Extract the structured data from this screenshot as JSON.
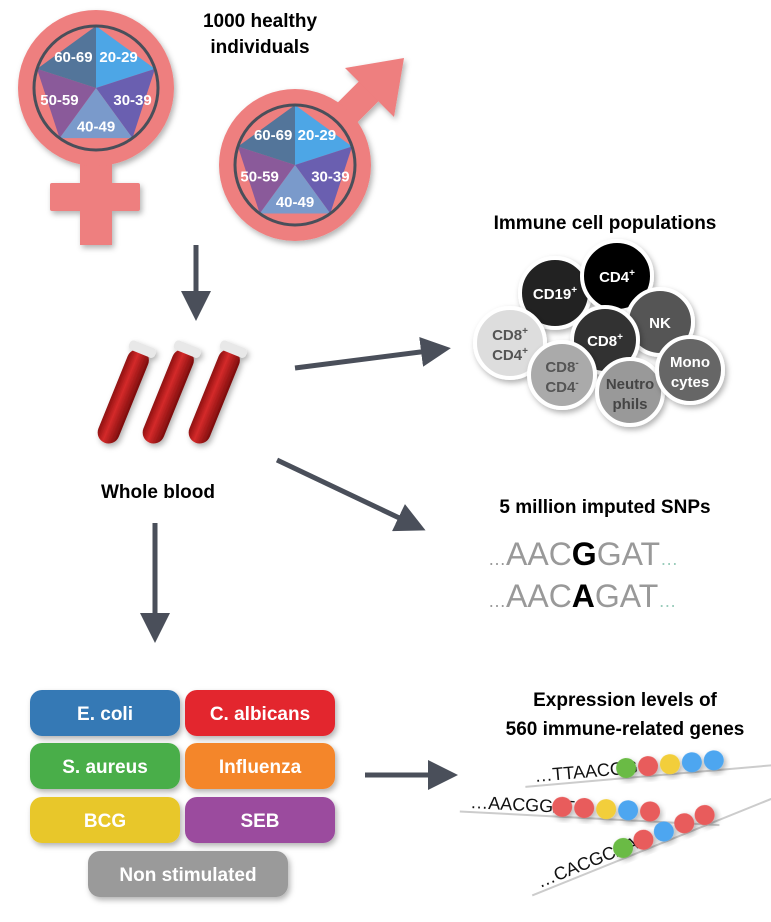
{
  "title": {
    "line1": "1000 healthy",
    "line2": "individuals"
  },
  "age_groups": [
    "20-29",
    "30-39",
    "40-49",
    "50-59",
    "60-69"
  ],
  "age_colors": [
    "#4EA6E6",
    "#6A5FB0",
    "#7A9ACB",
    "#8A5A9A",
    "#52759A"
  ],
  "symbol_color": "#EE7F7F",
  "whole_blood": "Whole blood",
  "immune": {
    "title": "Immune cell populations",
    "cells": [
      {
        "line1": "CD19",
        "sup1": "+",
        "color": "#222222",
        "text": "#ffffff"
      },
      {
        "line1": "CD4",
        "sup1": "+",
        "color": "#000000",
        "text": "#ffffff"
      },
      {
        "line1": "NK",
        "color": "#555555",
        "text": "#ffffff"
      },
      {
        "line1": "CD8",
        "sup1": "+",
        "color": "#333333",
        "text": "#ffffff"
      },
      {
        "line1": "CD8",
        "sup1": "+",
        "line2": "CD4",
        "sup2": "+",
        "color": "#dddddd",
        "text": "#555555"
      },
      {
        "line1": "CD8",
        "sup1": "-",
        "line2": "CD4",
        "sup2": "-",
        "color": "#aaaaaa",
        "text": "#555555"
      },
      {
        "line1": "Neutro",
        "line2": "phils",
        "color": "#999999",
        "text": "#444444"
      },
      {
        "line1": "Mono",
        "line2": "cytes",
        "color": "#666666",
        "text": "#ffffff"
      }
    ]
  },
  "snps": {
    "title": "5 million imputed SNPs",
    "seq1": {
      "pre": "…",
      "left": "AAC",
      "allele": "G",
      "right": "GAT",
      "post": "…"
    },
    "seq2": {
      "pre": "…",
      "left": "AAC",
      "allele": "A",
      "right": "GAT",
      "post": "…"
    }
  },
  "stimuli": [
    {
      "label": "E. coli",
      "color": "#3579B5"
    },
    {
      "label": "C. albicans",
      "color": "#E3262D"
    },
    {
      "label": "S. aureus",
      "color": "#4AAE4A"
    },
    {
      "label": "Influenza",
      "color": "#F4862A"
    },
    {
      "label": "BCG",
      "color": "#E8C72A"
    },
    {
      "label": "SEB",
      "color": "#9B4C9E"
    },
    {
      "label": "Non stimulated",
      "color": "#9A9A9A"
    }
  ],
  "expression": {
    "line1": "Expression levels of",
    "line2": "560 immune-related genes",
    "sequences": [
      {
        "text": "…TTAACGG",
        "dots": [
          "#6BBB45",
          "#E85C5C",
          "#F2CE3A",
          "#4EA6F0",
          "#4EA6F0"
        ]
      },
      {
        "text": "…AACGGAT",
        "dots": [
          "#E85C5C",
          "#E85C5C",
          "#F2CE3A",
          "#4EA6F0",
          "#E85C5C"
        ]
      },
      {
        "text": "…CACGCAA",
        "dots": [
          "#6BBB45",
          "#E85C5C",
          "#4EA6F0",
          "#E85C5C",
          "#E85C5C"
        ]
      }
    ]
  }
}
